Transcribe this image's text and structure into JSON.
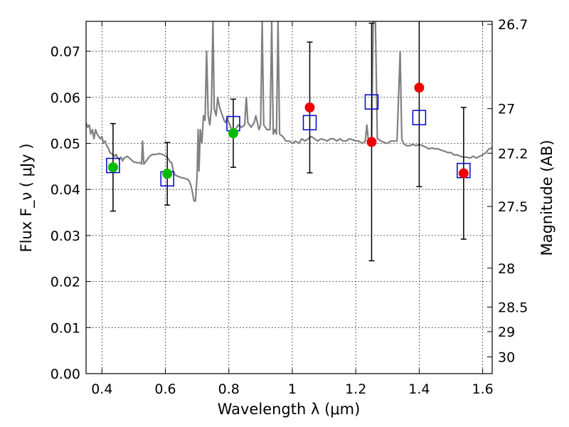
{
  "chart_data": {
    "type": "scatter",
    "xlabel": "Wavelength  λ (μm)",
    "ylabel": "Flux  F_ν  ( μJy )",
    "y2label": "Magnitude (AB)",
    "xlim": [
      0.35,
      1.63
    ],
    "ylim": [
      0.0,
      0.0765
    ],
    "xticks": [
      {
        "value": 0.4,
        "label": "0.4"
      },
      {
        "value": 0.6,
        "label": "0.6"
      },
      {
        "value": 0.8,
        "label": "0.8"
      },
      {
        "value": 1.0,
        "label": "1"
      },
      {
        "value": 1.2,
        "label": "1.2"
      },
      {
        "value": 1.4,
        "label": "1.4"
      },
      {
        "value": 1.6,
        "label": "1.6"
      }
    ],
    "yticks": [
      {
        "value": 0.0,
        "label": "0.00"
      },
      {
        "value": 0.01,
        "label": "0.01"
      },
      {
        "value": 0.02,
        "label": "0.02"
      },
      {
        "value": 0.03,
        "label": "0.03"
      },
      {
        "value": 0.04,
        "label": "0.04"
      },
      {
        "value": 0.05,
        "label": "0.05"
      },
      {
        "value": 0.06,
        "label": "0.06"
      },
      {
        "value": 0.07,
        "label": "0.07"
      }
    ],
    "y2ticks": [
      {
        "mag": 26.7,
        "label": "26.7"
      },
      {
        "mag": 27.0,
        "label": "27"
      },
      {
        "mag": 27.2,
        "label": "27.2"
      },
      {
        "mag": 27.5,
        "label": "27.5"
      },
      {
        "mag": 28.0,
        "label": "28"
      },
      {
        "mag": 28.5,
        "label": "28.5"
      },
      {
        "mag": 29.0,
        "label": "29"
      },
      {
        "mag": 30.0,
        "label": "30"
      }
    ],
    "grid": true,
    "colors": {
      "model": "#808080",
      "errorbar": "#000000",
      "model_phot": "#0000cc",
      "detected": "#00bb00",
      "undetected": "#ee0000"
    },
    "observed": [
      {
        "x": 0.435,
        "y": 0.0448,
        "yerr": 0.0095,
        "group": "detected"
      },
      {
        "x": 0.606,
        "y": 0.0434,
        "yerr": 0.0068,
        "group": "detected"
      },
      {
        "x": 0.814,
        "y": 0.0522,
        "yerr": 0.0074,
        "group": "detected"
      },
      {
        "x": 1.055,
        "y": 0.0578,
        "yerr": 0.0142,
        "group": "undetected"
      },
      {
        "x": 1.25,
        "y": 0.0503,
        "yerr": 0.0258,
        "group": "undetected"
      },
      {
        "x": 1.4,
        "y": 0.0621,
        "yerr": 0.0215,
        "group": "undetected"
      },
      {
        "x": 1.54,
        "y": 0.0435,
        "yerr": 0.0143,
        "group": "undetected"
      }
    ],
    "model_photometry": [
      {
        "x": 0.435,
        "y": 0.0452
      },
      {
        "x": 0.606,
        "y": 0.0423
      },
      {
        "x": 0.814,
        "y": 0.0543
      },
      {
        "x": 1.055,
        "y": 0.0545
      },
      {
        "x": 1.25,
        "y": 0.059
      },
      {
        "x": 1.4,
        "y": 0.0556
      },
      {
        "x": 1.54,
        "y": 0.0441
      }
    ],
    "model_spectrum": [
      [
        0.35,
        0.0545
      ],
      [
        0.355,
        0.0535
      ],
      [
        0.36,
        0.054
      ],
      [
        0.365,
        0.052
      ],
      [
        0.37,
        0.053
      ],
      [
        0.375,
        0.051
      ],
      [
        0.38,
        0.053
      ],
      [
        0.385,
        0.052
      ],
      [
        0.39,
        0.0515
      ],
      [
        0.395,
        0.051
      ],
      [
        0.4,
        0.0515
      ],
      [
        0.405,
        0.05
      ],
      [
        0.41,
        0.0505
      ],
      [
        0.415,
        0.0495
      ],
      [
        0.42,
        0.049
      ],
      [
        0.425,
        0.048
      ],
      [
        0.43,
        0.0478
      ],
      [
        0.435,
        0.0476
      ],
      [
        0.44,
        0.0472
      ],
      [
        0.445,
        0.0476
      ],
      [
        0.45,
        0.0468
      ],
      [
        0.455,
        0.0465
      ],
      [
        0.46,
        0.047
      ],
      [
        0.465,
        0.0462
      ],
      [
        0.47,
        0.0468
      ],
      [
        0.48,
        0.0472
      ],
      [
        0.49,
        0.0466
      ],
      [
        0.5,
        0.046
      ],
      [
        0.51,
        0.0458
      ],
      [
        0.52,
        0.0458
      ],
      [
        0.525,
        0.0455
      ],
      [
        0.528,
        0.0505
      ],
      [
        0.532,
        0.0455
      ],
      [
        0.54,
        0.0462
      ],
      [
        0.55,
        0.0472
      ],
      [
        0.56,
        0.0476
      ],
      [
        0.57,
        0.0476
      ],
      [
        0.58,
        0.0478
      ],
      [
        0.59,
        0.0476
      ],
      [
        0.6,
        0.0473
      ],
      [
        0.61,
        0.0466
      ],
      [
        0.615,
        0.046
      ],
      [
        0.62,
        0.0458
      ],
      [
        0.625,
        0.044
      ],
      [
        0.63,
        0.0432
      ],
      [
        0.64,
        0.0428
      ],
      [
        0.65,
        0.0426
      ],
      [
        0.66,
        0.0424
      ],
      [
        0.67,
        0.0422
      ],
      [
        0.675,
        0.0418
      ],
      [
        0.68,
        0.041
      ],
      [
        0.685,
        0.0395
      ],
      [
        0.69,
        0.0375
      ],
      [
        0.695,
        0.0375
      ],
      [
        0.7,
        0.043
      ],
      [
        0.703,
        0.053
      ],
      [
        0.706,
        0.044
      ],
      [
        0.71,
        0.053
      ],
      [
        0.715,
        0.05
      ],
      [
        0.72,
        0.056
      ],
      [
        0.725,
        0.055
      ],
      [
        0.73,
        0.07
      ],
      [
        0.735,
        0.056
      ],
      [
        0.74,
        0.054
      ],
      [
        0.745,
        0.0575
      ],
      [
        0.75,
        0.0765
      ],
      [
        0.754,
        0.0575
      ],
      [
        0.76,
        0.056
      ],
      [
        0.765,
        0.06
      ],
      [
        0.77,
        0.058
      ],
      [
        0.775,
        0.057
      ],
      [
        0.78,
        0.056
      ],
      [
        0.785,
        0.055
      ],
      [
        0.79,
        0.0545
      ],
      [
        0.795,
        0.0555
      ],
      [
        0.8,
        0.0545
      ],
      [
        0.81,
        0.053
      ],
      [
        0.82,
        0.053
      ],
      [
        0.83,
        0.054
      ],
      [
        0.84,
        0.0535
      ],
      [
        0.85,
        0.054
      ],
      [
        0.855,
        0.06
      ],
      [
        0.86,
        0.0545
      ],
      [
        0.87,
        0.0535
      ],
      [
        0.88,
        0.0545
      ],
      [
        0.885,
        0.056
      ],
      [
        0.89,
        0.0545
      ],
      [
        0.895,
        0.053
      ],
      [
        0.9,
        0.054
      ],
      [
        0.905,
        0.0765
      ],
      [
        0.91,
        0.054
      ],
      [
        0.92,
        0.053
      ],
      [
        0.93,
        0.053
      ],
      [
        0.935,
        0.0765
      ],
      [
        0.94,
        0.052
      ],
      [
        0.945,
        0.053
      ],
      [
        0.95,
        0.052
      ],
      [
        0.955,
        0.0765
      ],
      [
        0.96,
        0.052
      ],
      [
        0.97,
        0.0515
      ],
      [
        0.98,
        0.0505
      ],
      [
        0.99,
        0.0505
      ],
      [
        1.0,
        0.05
      ],
      [
        1.01,
        0.0505
      ],
      [
        1.02,
        0.05
      ],
      [
        1.03,
        0.051
      ],
      [
        1.04,
        0.0505
      ],
      [
        1.05,
        0.051
      ],
      [
        1.06,
        0.0515
      ],
      [
        1.07,
        0.051
      ],
      [
        1.08,
        0.0505
      ],
      [
        1.09,
        0.051
      ],
      [
        1.1,
        0.0508
      ],
      [
        1.11,
        0.0505
      ],
      [
        1.12,
        0.051
      ],
      [
        1.13,
        0.051
      ],
      [
        1.14,
        0.0505
      ],
      [
        1.15,
        0.051
      ],
      [
        1.16,
        0.0505
      ],
      [
        1.17,
        0.0505
      ],
      [
        1.18,
        0.051
      ],
      [
        1.19,
        0.0508
      ],
      [
        1.2,
        0.0505
      ],
      [
        1.21,
        0.0505
      ],
      [
        1.22,
        0.05
      ],
      [
        1.23,
        0.0505
      ],
      [
        1.235,
        0.054
      ],
      [
        1.24,
        0.0505
      ],
      [
        1.25,
        0.051
      ],
      [
        1.255,
        0.0765
      ],
      [
        1.262,
        0.0765
      ],
      [
        1.268,
        0.051
      ],
      [
        1.28,
        0.0505
      ],
      [
        1.29,
        0.0502
      ],
      [
        1.3,
        0.05
      ],
      [
        1.31,
        0.0505
      ],
      [
        1.32,
        0.0505
      ],
      [
        1.33,
        0.0505
      ],
      [
        1.34,
        0.07
      ],
      [
        1.345,
        0.051
      ],
      [
        1.35,
        0.05
      ],
      [
        1.36,
        0.0495
      ],
      [
        1.37,
        0.0495
      ],
      [
        1.38,
        0.0498
      ],
      [
        1.39,
        0.0495
      ],
      [
        1.4,
        0.0498
      ],
      [
        1.41,
        0.0495
      ],
      [
        1.42,
        0.0492
      ],
      [
        1.43,
        0.0488
      ],
      [
        1.44,
        0.049
      ],
      [
        1.45,
        0.0488
      ],
      [
        1.46,
        0.0488
      ],
      [
        1.47,
        0.0485
      ],
      [
        1.48,
        0.0483
      ],
      [
        1.49,
        0.048
      ],
      [
        1.5,
        0.048
      ],
      [
        1.51,
        0.0475
      ],
      [
        1.52,
        0.0475
      ],
      [
        1.53,
        0.0472
      ],
      [
        1.54,
        0.047
      ],
      [
        1.55,
        0.047
      ],
      [
        1.56,
        0.0468
      ],
      [
        1.57,
        0.0472
      ],
      [
        1.58,
        0.0468
      ],
      [
        1.59,
        0.0472
      ],
      [
        1.6,
        0.0475
      ],
      [
        1.61,
        0.048
      ],
      [
        1.62,
        0.0488
      ],
      [
        1.63,
        0.049
      ]
    ]
  }
}
